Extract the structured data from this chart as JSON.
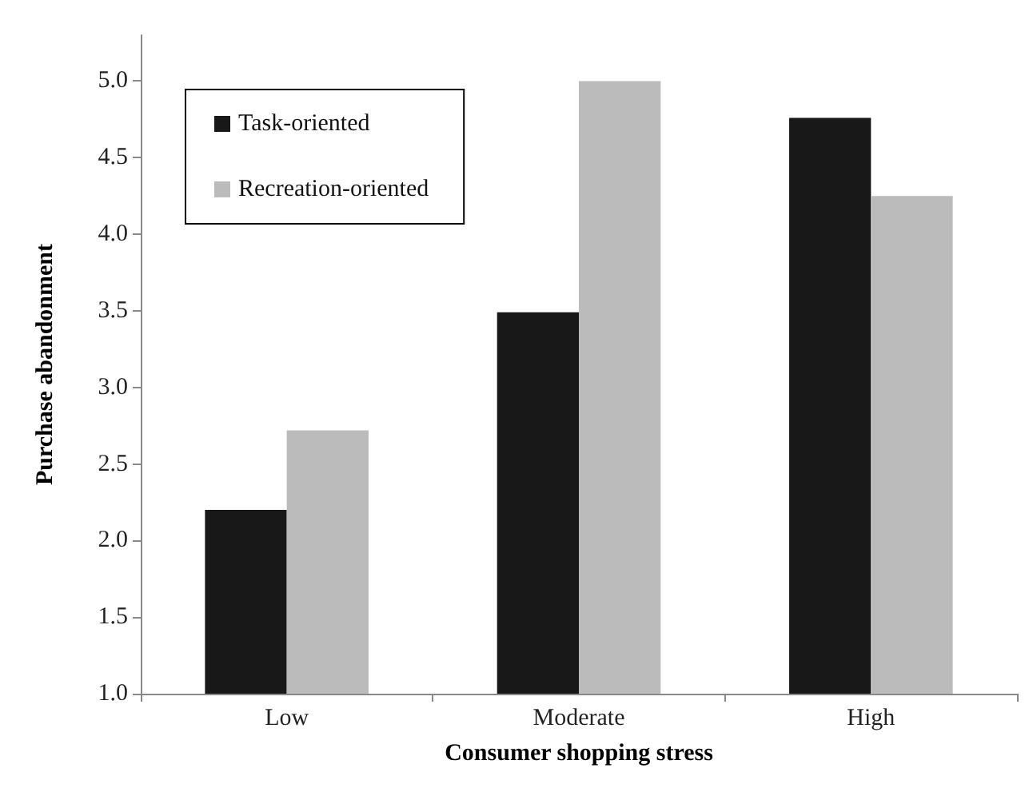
{
  "chart_data": {
    "type": "bar",
    "xlabel": "Consumer shopping stress",
    "ylabel": "Purchase abandonment",
    "categories": [
      "Low",
      "Moderate",
      "High"
    ],
    "series": [
      {
        "name": "Task-oriented",
        "color": "#181818",
        "values": [
          2.2,
          3.49,
          4.76
        ]
      },
      {
        "name": "Recreation-oriented",
        "color": "#bbbbbb",
        "values": [
          2.72,
          5.0,
          4.25
        ]
      }
    ],
    "ylim": [
      1,
      5.3
    ],
    "yticks": [
      {
        "value": 1,
        "label": "1.0"
      },
      {
        "value": 1.5,
        "label": "1.5"
      },
      {
        "value": 2,
        "label": "2.0"
      },
      {
        "value": 2.5,
        "label": "2.5"
      },
      {
        "value": 3,
        "label": "3.0"
      },
      {
        "value": 3.5,
        "label": "3.5"
      },
      {
        "value": 4,
        "label": "4.0"
      },
      {
        "value": 4.5,
        "label": "4.5"
      },
      {
        "value": 5,
        "label": "5.0"
      }
    ],
    "grid": false,
    "legend": "top left"
  }
}
